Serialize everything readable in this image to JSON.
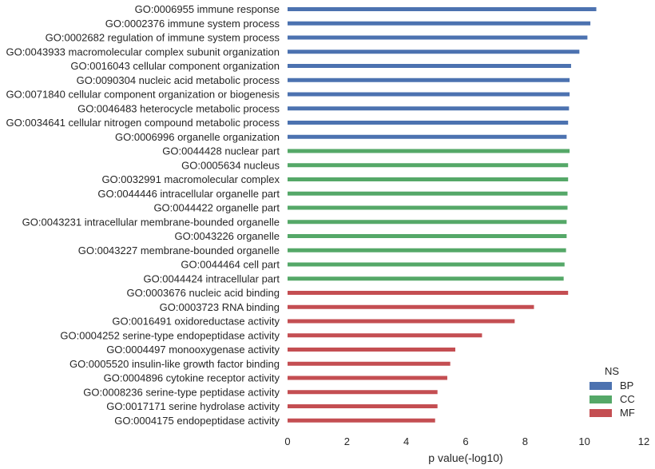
{
  "chart_data": {
    "type": "bar",
    "orientation": "horizontal",
    "xlabel": "p value(-log10)",
    "ylabel": "",
    "xlim": [
      0,
      12
    ],
    "xticks": [
      "0",
      "2",
      "4",
      "6",
      "8",
      "10",
      "12"
    ],
    "grid": false,
    "legend": {
      "title": "NS",
      "placement": "bottom-right",
      "entries": [
        {
          "name": "BP",
          "color": "#4c72b0"
        },
        {
          "name": "CC",
          "color": "#55a868"
        },
        {
          "name": "MF",
          "color": "#c44e52"
        }
      ]
    },
    "bars": [
      {
        "label": "GO:0006955 immune response",
        "value": 10.4,
        "ns": "BP"
      },
      {
        "label": "GO:0002376 immune system process",
        "value": 10.2,
        "ns": "BP"
      },
      {
        "label": "GO:0002682 regulation of immune system process",
        "value": 10.1,
        "ns": "BP"
      },
      {
        "label": "GO:0043933 macromolecular complex subunit organization",
        "value": 9.83,
        "ns": "BP"
      },
      {
        "label": "GO:0016043 cellular component organization",
        "value": 9.55,
        "ns": "BP"
      },
      {
        "label": "GO:0090304 nucleic acid metabolic process",
        "value": 9.5,
        "ns": "BP"
      },
      {
        "label": "GO:0071840 cellular component organization or biogenesis",
        "value": 9.5,
        "ns": "BP"
      },
      {
        "label": "GO:0046483 heterocycle metabolic process",
        "value": 9.48,
        "ns": "BP"
      },
      {
        "label": "GO:0034641 cellular nitrogen compound metabolic process",
        "value": 9.45,
        "ns": "BP"
      },
      {
        "label": "GO:0006996 organelle organization",
        "value": 9.4,
        "ns": "BP"
      },
      {
        "label": "GO:0044428 nuclear part",
        "value": 9.5,
        "ns": "CC"
      },
      {
        "label": "GO:0005634 nucleus",
        "value": 9.45,
        "ns": "CC"
      },
      {
        "label": "GO:0032991 macromolecular complex",
        "value": 9.45,
        "ns": "CC"
      },
      {
        "label": "GO:0044446 intracellular organelle part",
        "value": 9.43,
        "ns": "CC"
      },
      {
        "label": "GO:0044422 organelle part",
        "value": 9.43,
        "ns": "CC"
      },
      {
        "label": "GO:0043231 intracellular membrane-bounded organelle",
        "value": 9.4,
        "ns": "CC"
      },
      {
        "label": "GO:0043226 organelle",
        "value": 9.4,
        "ns": "CC"
      },
      {
        "label": "GO:0043227 membrane-bounded organelle",
        "value": 9.38,
        "ns": "CC"
      },
      {
        "label": "GO:0044464 cell part",
        "value": 9.33,
        "ns": "CC"
      },
      {
        "label": "GO:0044424 intracellular part",
        "value": 9.3,
        "ns": "CC"
      },
      {
        "label": "GO:0003676 nucleic acid binding",
        "value": 9.45,
        "ns": "MF"
      },
      {
        "label": "GO:0003723 RNA binding",
        "value": 8.3,
        "ns": "MF"
      },
      {
        "label": "GO:0016491 oxidoreductase activity",
        "value": 7.65,
        "ns": "MF"
      },
      {
        "label": "GO:0004252 serine-type endopeptidase activity",
        "value": 6.55,
        "ns": "MF"
      },
      {
        "label": "GO:0004497 monooxygenase activity",
        "value": 5.65,
        "ns": "MF"
      },
      {
        "label": "GO:0005520 insulin-like growth factor binding",
        "value": 5.48,
        "ns": "MF"
      },
      {
        "label": "GO:0004896 cytokine receptor activity",
        "value": 5.38,
        "ns": "MF"
      },
      {
        "label": "GO:0008236 serine-type peptidase activity",
        "value": 5.05,
        "ns": "MF"
      },
      {
        "label": "GO:0017171 serine hydrolase activity",
        "value": 5.05,
        "ns": "MF"
      },
      {
        "label": "GO:0004175 endopeptidase activity",
        "value": 4.97,
        "ns": "MF"
      }
    ]
  }
}
